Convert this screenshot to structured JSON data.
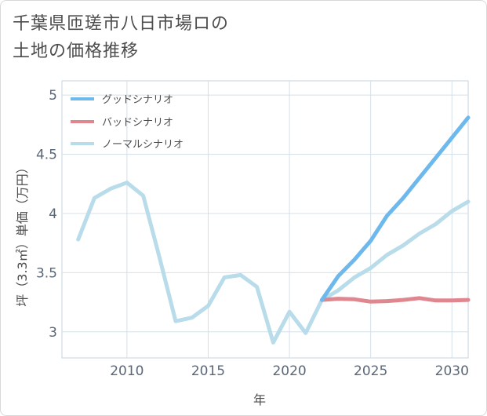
{
  "chart_data": {
    "type": "line",
    "title": "千葉県匝瑳市八日市場ロの土地の価格推移",
    "title_lines": [
      "千葉県匝瑳市八日市場ロの",
      "土地の価格推移"
    ],
    "xlabel": "年",
    "ylabel": "坪（3.3㎡）単価（万円）",
    "xlim": [
      2006,
      2031
    ],
    "ylim": [
      2.78,
      5.12
    ],
    "xticks": [
      2010,
      2015,
      2020,
      2025,
      2030
    ],
    "yticks": [
      3,
      3.5,
      4,
      4.5,
      5
    ],
    "ytick_labels": [
      "3",
      "3.5",
      "4",
      "4.5",
      "5"
    ],
    "grid": true,
    "legend_position": "top-left",
    "series": [
      {
        "name": "グッドシナリオ",
        "color": "#6db8ec",
        "x": [
          2022,
          2023,
          2024,
          2025,
          2026,
          2027,
          2028,
          2029,
          2030,
          2031
        ],
        "values": [
          3.27,
          3.47,
          3.61,
          3.77,
          3.98,
          4.13,
          4.3,
          4.47,
          4.64,
          4.81
        ]
      },
      {
        "name": "バッドシナリオ",
        "color": "#e0868f",
        "x": [
          2022,
          2023,
          2024,
          2025,
          2026,
          2027,
          2028,
          2029,
          2030,
          2031
        ],
        "values": [
          3.27,
          3.28,
          3.275,
          3.255,
          3.26,
          3.27,
          3.285,
          3.265,
          3.265,
          3.27
        ]
      },
      {
        "name": "ノーマルシナリオ",
        "color": "#b9dcea",
        "x": [
          2007,
          2008,
          2009,
          2010,
          2011,
          2012,
          2013,
          2014,
          2015,
          2016,
          2017,
          2018,
          2019,
          2020,
          2021,
          2022,
          2023,
          2024,
          2025,
          2026,
          2027,
          2028,
          2029,
          2030,
          2031
        ],
        "values": [
          3.78,
          4.13,
          4.21,
          4.26,
          4.15,
          3.63,
          3.09,
          3.12,
          3.22,
          3.46,
          3.48,
          3.38,
          2.91,
          3.17,
          2.99,
          3.27,
          3.35,
          3.46,
          3.54,
          3.65,
          3.73,
          3.83,
          3.91,
          4.02,
          4.1
        ]
      }
    ]
  }
}
